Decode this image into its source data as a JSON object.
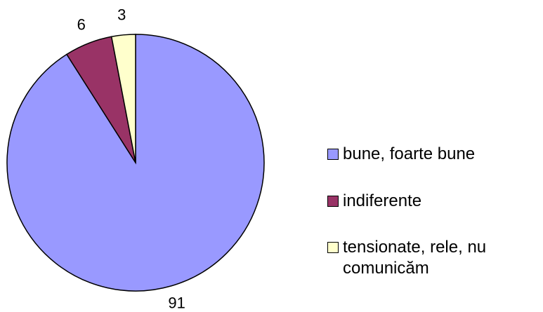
{
  "chart_data": {
    "type": "pie",
    "categories": [
      "bune, foarte bune",
      "indiferente",
      "tensionate, rele, nu comunicăm"
    ],
    "values": [
      91,
      6,
      3
    ],
    "colors": [
      "#9999ff",
      "#993366",
      "#ffffcc"
    ],
    "legend": "right"
  }
}
